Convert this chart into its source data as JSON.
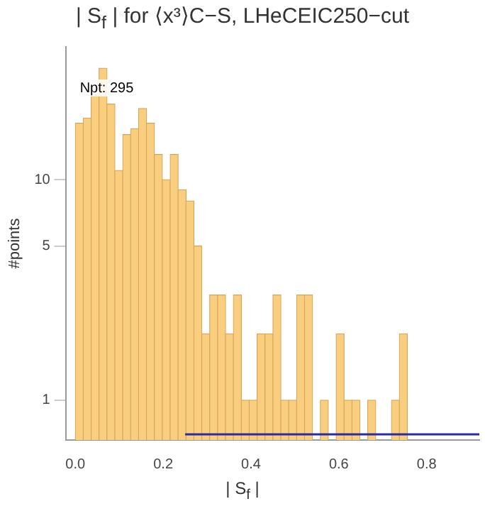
{
  "chart_data": {
    "type": "histogram",
    "title": "| S$_{f}$ | for ⟨x³⟩C−S, LHeCEIC250−cut",
    "xlabel": "| S$_{f}$ |",
    "ylabel": "#points",
    "annotations": [
      "Npt: 295"
    ],
    "bins": [
      0,
      0.018,
      0.036,
      0.054,
      0.072,
      0.09,
      0.108,
      0.126,
      0.144,
      0.162,
      0.18,
      0.198,
      0.216,
      0.234,
      0.252,
      0.27,
      0.288,
      0.306,
      0.324,
      0.342,
      0.36,
      0.378,
      0.396,
      0.414,
      0.432,
      0.45,
      0.468,
      0.486,
      0.504,
      0.522,
      0.54,
      0.558,
      0.576,
      0.594,
      0.612,
      0.63,
      0.648,
      0.666,
      0.684,
      0.702,
      0.72,
      0.738,
      0.756
    ],
    "values": [
      18,
      19,
      24,
      32,
      22,
      11,
      16,
      17,
      21,
      18,
      13,
      10,
      13,
      9,
      8,
      5,
      2,
      3,
      3,
      2,
      3,
      1,
      1,
      2,
      2,
      3,
      1,
      1,
      3,
      3,
      null,
      1,
      null,
      2,
      1,
      1,
      null,
      1,
      null,
      null,
      1,
      2
    ],
    "color": "#f9cf7f",
    "series": [
      {
        "type": "line",
        "x": [
          0.25,
          0.92
        ],
        "values": [
          0.7,
          0.7
        ],
        "color": "#2b2ba6"
      }
    ],
    "log": "y",
    "xlim": [
      -0.022,
      0.92
    ],
    "ylim": [
      0.66,
      40
    ],
    "xticks": [
      {
        "value": 0,
        "label": "0.0"
      },
      {
        "value": 0.2,
        "label": "0.2"
      },
      {
        "value": 0.4,
        "label": "0.4"
      },
      {
        "value": 0.6,
        "label": "0.6"
      },
      {
        "value": 0.8,
        "label": "0.8"
      }
    ],
    "yticks": [
      1,
      5,
      10
    ],
    "grid": false,
    "legend": false
  }
}
